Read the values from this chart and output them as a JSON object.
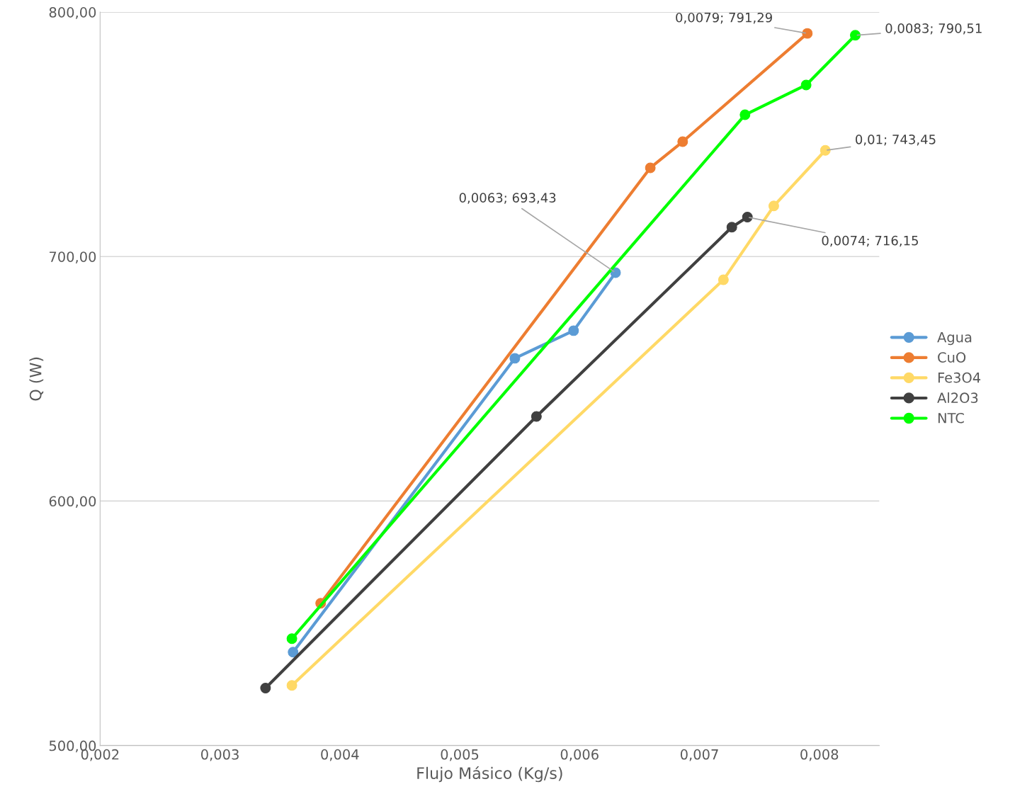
{
  "chart_data": {
    "type": "line",
    "xlabel": "Flujo Másico (Kg/s)",
    "ylabel": "Q (W)",
    "xlim": [
      0.002,
      0.0085
    ],
    "ylim": [
      500,
      800
    ],
    "xticks": [
      {
        "value": 0.002,
        "label": "0,002"
      },
      {
        "value": 0.003,
        "label": "0,003"
      },
      {
        "value": 0.004,
        "label": "0,004"
      },
      {
        "value": 0.005,
        "label": "0,005"
      },
      {
        "value": 0.006,
        "label": "0,006"
      },
      {
        "value": 0.007,
        "label": "0,007"
      },
      {
        "value": 0.008,
        "label": "0,008"
      }
    ],
    "yticks": [
      {
        "value": 500,
        "label": "500,00"
      },
      {
        "value": 600,
        "label": "600,00"
      },
      {
        "value": 700,
        "label": "700,00"
      },
      {
        "value": 800,
        "label": "800,00"
      }
    ],
    "grid": "y",
    "legend": "right",
    "marker": "circle",
    "line_style": "solid",
    "series": [
      {
        "name": "Agua",
        "color": "#5b9bd5",
        "x": [
          0.00361,
          0.00546,
          0.00595,
          0.0063
        ],
        "values": [
          538.2,
          658.4,
          669.7,
          693.43
        ]
      },
      {
        "name": "CuO",
        "color": "#ed7d31",
        "x": [
          0.00384,
          0.00659,
          0.00686,
          0.0079
        ],
        "values": [
          558.2,
          736.3,
          747.0,
          791.29
        ]
      },
      {
        "name": "Fe3O4",
        "color": "#ffd966",
        "x": [
          0.0036,
          0.0072,
          0.00762,
          0.00805
        ],
        "values": [
          524.6,
          690.5,
          720.7,
          743.45
        ]
      },
      {
        "name": "Al2O3",
        "color": "#404040",
        "x": [
          0.00338,
          0.00564,
          0.00727,
          0.0074
        ],
        "values": [
          523.5,
          634.6,
          712.0,
          716.15
        ]
      },
      {
        "name": "NTC",
        "color": "#00ff00",
        "x": [
          0.0036,
          0.00738,
          0.00789,
          0.0083
        ],
        "values": [
          543.7,
          758.0,
          770.2,
          790.51
        ]
      }
    ],
    "annotations": [
      {
        "text": "0,0063; 693,43",
        "x": 0.0063,
        "y": 693.43
      },
      {
        "text": "0,0079; 791,29",
        "x": 0.0079,
        "y": 791.29
      },
      {
        "text": "0,0083; 790,51",
        "x": 0.0083,
        "y": 790.51
      },
      {
        "text": "0,01; 743,45",
        "x": 0.00805,
        "y": 743.45
      },
      {
        "text": "0,0074; 716,15",
        "x": 0.0074,
        "y": 716.15
      }
    ]
  }
}
